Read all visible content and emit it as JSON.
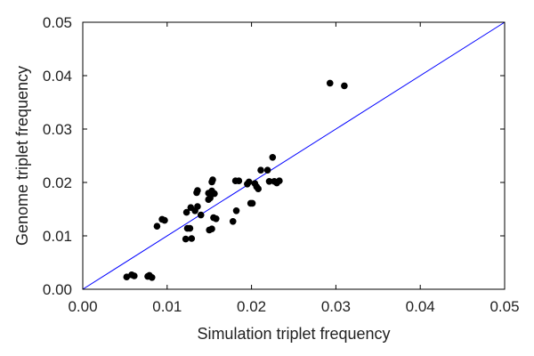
{
  "chart_data": {
    "type": "scatter",
    "title": "",
    "xlabel": "Simulation triplet frequency",
    "ylabel": "Genome triplet frequency",
    "xlim": [
      0.0,
      0.05
    ],
    "ylim": [
      0.0,
      0.05
    ],
    "xticks": [
      "0.00",
      "0.01",
      "0.02",
      "0.03",
      "0.04",
      "0.05"
    ],
    "yticks": [
      "0.00",
      "0.01",
      "0.02",
      "0.03",
      "0.04",
      "0.05"
    ],
    "grid": false,
    "reference_line": {
      "from": [
        0.0,
        0.0
      ],
      "to": [
        0.05,
        0.05
      ],
      "color": "#0000ff"
    },
    "point_color": "#000000",
    "points": [
      [
        0.0052,
        0.0023
      ],
      [
        0.0058,
        0.0027
      ],
      [
        0.0061,
        0.0025
      ],
      [
        0.0077,
        0.0024
      ],
      [
        0.0079,
        0.0026
      ],
      [
        0.0082,
        0.0022
      ],
      [
        0.0088,
        0.0118
      ],
      [
        0.0094,
        0.0131
      ],
      [
        0.0097,
        0.0129
      ],
      [
        0.0122,
        0.0094
      ],
      [
        0.0129,
        0.0095
      ],
      [
        0.0124,
        0.0114
      ],
      [
        0.0127,
        0.0114
      ],
      [
        0.0123,
        0.0144
      ],
      [
        0.0128,
        0.0153
      ],
      [
        0.0133,
        0.0147
      ],
      [
        0.0136,
        0.0155
      ],
      [
        0.014,
        0.0139
      ],
      [
        0.0135,
        0.0181
      ],
      [
        0.0136,
        0.0185
      ],
      [
        0.0149,
        0.0168
      ],
      [
        0.0151,
        0.0171
      ],
      [
        0.0149,
        0.018
      ],
      [
        0.0153,
        0.0184
      ],
      [
        0.0156,
        0.0179
      ],
      [
        0.0153,
        0.0201
      ],
      [
        0.0154,
        0.0205
      ],
      [
        0.015,
        0.0111
      ],
      [
        0.0153,
        0.0113
      ],
      [
        0.0155,
        0.0134
      ],
      [
        0.0158,
        0.0132
      ],
      [
        0.0178,
        0.0127
      ],
      [
        0.0182,
        0.0147
      ],
      [
        0.0181,
        0.0203
      ],
      [
        0.0185,
        0.0203
      ],
      [
        0.0195,
        0.0197
      ],
      [
        0.0197,
        0.0201
      ],
      [
        0.0199,
        0.0161
      ],
      [
        0.0201,
        0.0161
      ],
      [
        0.0204,
        0.0198
      ],
      [
        0.0206,
        0.0192
      ],
      [
        0.0208,
        0.0188
      ],
      [
        0.0211,
        0.0223
      ],
      [
        0.0219,
        0.0223
      ],
      [
        0.0221,
        0.0202
      ],
      [
        0.0225,
        0.0247
      ],
      [
        0.0227,
        0.0202
      ],
      [
        0.023,
        0.0199
      ],
      [
        0.0233,
        0.0203
      ],
      [
        0.0293,
        0.0386
      ],
      [
        0.031,
        0.0381
      ]
    ]
  }
}
